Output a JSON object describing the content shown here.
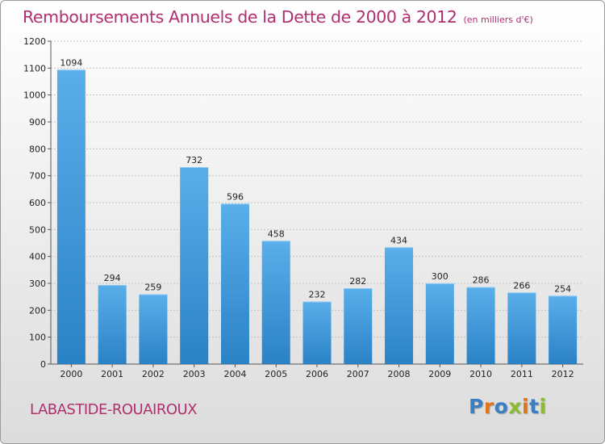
{
  "page": {
    "title": "Remboursements Annuels de la Dette de 2000 à 2012",
    "unit": "(en milliers d'€)",
    "commune": "LABASTIDE-ROUAIROUX",
    "logo": "Proxiti"
  },
  "logo_colors": [
    "#3a7ec4",
    "#e0741b",
    "#3a7ec4",
    "#8dbb2e",
    "#e0741b",
    "#3a7ec4",
    "#8dbb2e"
  ],
  "colors": {
    "title": "#b0306f",
    "bar_top": "#5aaee9",
    "bar_bottom": "#2a82c6"
  },
  "chart_data": {
    "type": "bar",
    "title": "Remboursements Annuels de la Dette de 2000 à 2012",
    "xlabel": "",
    "ylabel": "",
    "categories": [
      "2000",
      "2001",
      "2002",
      "2003",
      "2004",
      "2005",
      "2006",
      "2007",
      "2008",
      "2009",
      "2010",
      "2011",
      "2012"
    ],
    "values": [
      1094,
      294,
      259,
      732,
      596,
      458,
      232,
      282,
      434,
      300,
      286,
      266,
      254
    ],
    "ylim": [
      0,
      1200
    ],
    "yticks": [
      0,
      100,
      200,
      300,
      400,
      500,
      600,
      700,
      800,
      900,
      1000,
      1100,
      1200
    ],
    "grid": true,
    "legend": "none"
  }
}
